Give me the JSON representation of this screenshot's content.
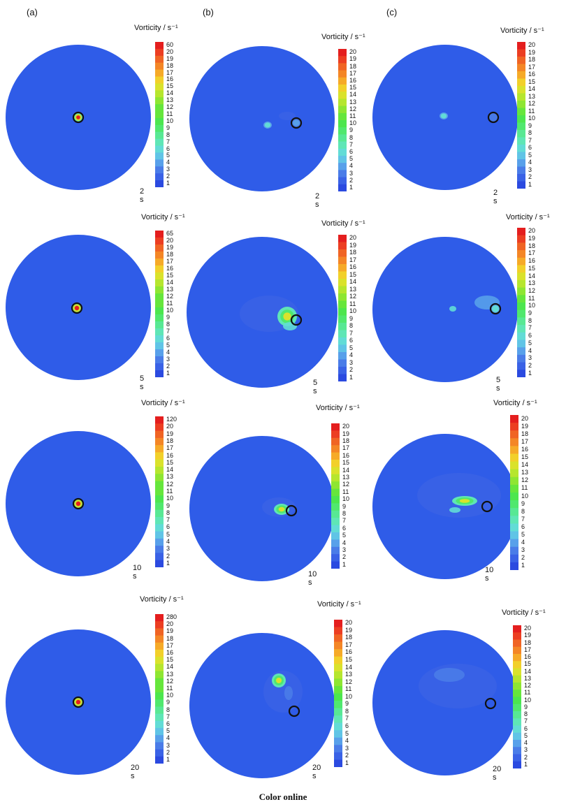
{
  "columns": [
    "(a)",
    "(b)",
    "(c)"
  ],
  "colorbar_title": "Vorticity / s⁻¹",
  "caption": "Color online",
  "colors": {
    "background_field": "#2f5ce8",
    "scale": [
      "#2b4ae0",
      "#3a62e6",
      "#4a7ce8",
      "#58a0ea",
      "#60c4e6",
      "#62dcd6",
      "#5fe6b6",
      "#58e894",
      "#50e86e",
      "#4ce64e",
      "#66e63c",
      "#8ee632",
      "#b6e62e",
      "#dae22c",
      "#f2d02a",
      "#f6aa28",
      "#f48626",
      "#f06424",
      "#ec3e22",
      "#e41e1e"
    ],
    "ring": "#111111"
  },
  "panels": [
    {
      "id": "a-2s",
      "time": "2 s",
      "ticks": [
        "60",
        "20",
        "19",
        "18",
        "17",
        "16",
        "15",
        "14",
        "13",
        "12",
        "11",
        "10",
        "9",
        "8",
        "7",
        "6",
        "5",
        "4",
        "3",
        "2",
        "1"
      ]
    },
    {
      "id": "b-2s",
      "time": "2 s",
      "ticks": [
        "20",
        "19",
        "18",
        "17",
        "16",
        "15",
        "14",
        "13",
        "12",
        "11",
        "10",
        "9",
        "8",
        "7",
        "6",
        "5",
        "4",
        "3",
        "2",
        "1"
      ]
    },
    {
      "id": "c-2s",
      "time": "2 s",
      "ticks": [
        "20",
        "19",
        "18",
        "17",
        "16",
        "15",
        "14",
        "13",
        "12",
        "11",
        "10",
        "9",
        "8",
        "7",
        "6",
        "5",
        "4",
        "3",
        "2",
        "1"
      ]
    },
    {
      "id": "a-5s",
      "time": "5 s",
      "ticks": [
        "65",
        "20",
        "19",
        "18",
        "17",
        "16",
        "15",
        "14",
        "13",
        "12",
        "11",
        "10",
        "9",
        "8",
        "7",
        "6",
        "5",
        "4",
        "3",
        "2",
        "1"
      ]
    },
    {
      "id": "b-5s",
      "time": "5 s",
      "ticks": [
        "20",
        "19",
        "18",
        "17",
        "16",
        "15",
        "14",
        "13",
        "12",
        "11",
        "10",
        "9",
        "8",
        "7",
        "6",
        "5",
        "4",
        "3",
        "2",
        "1"
      ]
    },
    {
      "id": "c-5s",
      "time": "5 s",
      "ticks": [
        "20",
        "19",
        "18",
        "17",
        "16",
        "15",
        "14",
        "13",
        "12",
        "11",
        "10",
        "9",
        "8",
        "7",
        "6",
        "5",
        "4",
        "3",
        "2",
        "1"
      ]
    },
    {
      "id": "a-10s",
      "time": "10 s",
      "ticks": [
        "120",
        "20",
        "19",
        "18",
        "17",
        "16",
        "15",
        "14",
        "13",
        "12",
        "11",
        "10",
        "9",
        "8",
        "7",
        "6",
        "5",
        "4",
        "3",
        "2",
        "1"
      ]
    },
    {
      "id": "b-10s",
      "time": "10 s",
      "ticks": [
        "20",
        "19",
        "18",
        "17",
        "16",
        "15",
        "14",
        "13",
        "12",
        "11",
        "10",
        "9",
        "8",
        "7",
        "6",
        "5",
        "4",
        "3",
        "2",
        "1"
      ]
    },
    {
      "id": "c-10s",
      "time": "10 s",
      "ticks": [
        "20",
        "19",
        "18",
        "17",
        "16",
        "15",
        "14",
        "13",
        "12",
        "11",
        "10",
        "9",
        "8",
        "7",
        "6",
        "5",
        "4",
        "3",
        "2",
        "1"
      ]
    },
    {
      "id": "a-20s",
      "time": "20 s",
      "ticks": [
        "280",
        "20",
        "19",
        "18",
        "17",
        "16",
        "15",
        "14",
        "13",
        "12",
        "11",
        "10",
        "9",
        "8",
        "7",
        "6",
        "5",
        "4",
        "3",
        "2",
        "1"
      ]
    },
    {
      "id": "b-20s",
      "time": "20 s",
      "ticks": [
        "20",
        "19",
        "18",
        "17",
        "16",
        "15",
        "14",
        "13",
        "12",
        "11",
        "10",
        "9",
        "8",
        "7",
        "6",
        "5",
        "4",
        "3",
        "2",
        "1"
      ]
    },
    {
      "id": "c-20s",
      "time": "20 s",
      "ticks": [
        "20",
        "19",
        "18",
        "17",
        "16",
        "15",
        "14",
        "13",
        "12",
        "11",
        "10",
        "9",
        "8",
        "7",
        "6",
        "5",
        "4",
        "3",
        "2",
        "1"
      ]
    }
  ]
}
